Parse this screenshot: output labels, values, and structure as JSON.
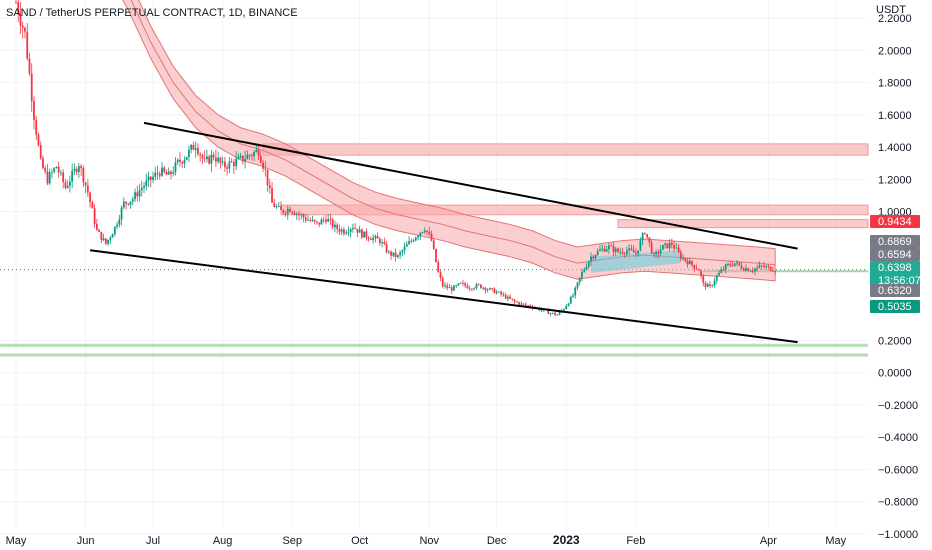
{
  "chart_data": {
    "type": "candlestick",
    "title": "SAND / TetherUS PERPETUAL CONTRACT, 1D, BINANCE",
    "currency_label": "USDT",
    "ylim": [
      -1.05,
      2.3
    ],
    "y_ticks": [
      "2.2000",
      "2.0000",
      "1.8000",
      "1.6000",
      "1.4000",
      "1.2000",
      "1.0000",
      "0.2000",
      "0.0000",
      "−0.2000",
      "−0.4000",
      "−0.6000",
      "−0.8000",
      "−1.0000"
    ],
    "y_tick_values": [
      2.2,
      2.0,
      1.8,
      1.6,
      1.4,
      1.2,
      1.0,
      0.2,
      0.0,
      -0.2,
      -0.4,
      -0.6,
      -0.8,
      -1.0
    ],
    "x_ticks": [
      {
        "label": "May",
        "day": 0
      },
      {
        "label": "Jun",
        "day": 31
      },
      {
        "label": "Jul",
        "day": 61
      },
      {
        "label": "Aug",
        "day": 92
      },
      {
        "label": "Sep",
        "day": 123
      },
      {
        "label": "Oct",
        "day": 153
      },
      {
        "label": "Nov",
        "day": 184
      },
      {
        "label": "Dec",
        "day": 214
      },
      {
        "label": "2023",
        "day": 245,
        "bold": true
      },
      {
        "label": "Feb",
        "day": 276
      },
      {
        "label": "Apr",
        "day": 335
      },
      {
        "label": "May",
        "day": 365
      }
    ],
    "price_path": [
      [
        0,
        2.3
      ],
      [
        4,
        2.1
      ],
      [
        8,
        1.6
      ],
      [
        11,
        1.3
      ],
      [
        14,
        1.2
      ],
      [
        18,
        1.28
      ],
      [
        22,
        1.15
      ],
      [
        28,
        1.3
      ],
      [
        32,
        1.12
      ],
      [
        36,
        0.88
      ],
      [
        40,
        0.8
      ],
      [
        44,
        0.9
      ],
      [
        48,
        1.05
      ],
      [
        52,
        1.08
      ],
      [
        56,
        1.15
      ],
      [
        60,
        1.2
      ],
      [
        64,
        1.25
      ],
      [
        68,
        1.22
      ],
      [
        72,
        1.3
      ],
      [
        76,
        1.35
      ],
      [
        80,
        1.42
      ],
      [
        84,
        1.3
      ],
      [
        88,
        1.35
      ],
      [
        92,
        1.28
      ],
      [
        96,
        1.3
      ],
      [
        100,
        1.32
      ],
      [
        104,
        1.35
      ],
      [
        108,
        1.38
      ],
      [
        111,
        1.25
      ],
      [
        114,
        1.05
      ],
      [
        118,
        1.0
      ],
      [
        122,
        1.02
      ],
      [
        126,
        0.98
      ],
      [
        130,
        0.95
      ],
      [
        134,
        0.92
      ],
      [
        138,
        0.96
      ],
      [
        142,
        0.9
      ],
      [
        146,
        0.88
      ],
      [
        150,
        0.91
      ],
      [
        154,
        0.86
      ],
      [
        158,
        0.84
      ],
      [
        162,
        0.82
      ],
      [
        166,
        0.74
      ],
      [
        170,
        0.72
      ],
      [
        174,
        0.79
      ],
      [
        178,
        0.85
      ],
      [
        182,
        0.9
      ],
      [
        185,
        0.82
      ],
      [
        188,
        0.62
      ],
      [
        190,
        0.54
      ],
      [
        194,
        0.52
      ],
      [
        198,
        0.55
      ],
      [
        202,
        0.53
      ],
      [
        206,
        0.54
      ],
      [
        210,
        0.52
      ],
      [
        214,
        0.5
      ],
      [
        218,
        0.47
      ],
      [
        222,
        0.44
      ],
      [
        226,
        0.42
      ],
      [
        230,
        0.41
      ],
      [
        234,
        0.39
      ],
      [
        238,
        0.37
      ],
      [
        241,
        0.36
      ],
      [
        244,
        0.4
      ],
      [
        248,
        0.48
      ],
      [
        252,
        0.62
      ],
      [
        256,
        0.72
      ],
      [
        260,
        0.76
      ],
      [
        264,
        0.78
      ],
      [
        268,
        0.75
      ],
      [
        272,
        0.76
      ],
      [
        276,
        0.74
      ],
      [
        280,
        0.88
      ],
      [
        284,
        0.72
      ],
      [
        288,
        0.78
      ],
      [
        292,
        0.8
      ],
      [
        296,
        0.72
      ],
      [
        300,
        0.68
      ],
      [
        304,
        0.64
      ],
      [
        306,
        0.55
      ],
      [
        309,
        0.53
      ],
      [
        312,
        0.6
      ],
      [
        316,
        0.66
      ],
      [
        320,
        0.68
      ],
      [
        324,
        0.65
      ],
      [
        328,
        0.64
      ],
      [
        332,
        0.66
      ],
      [
        335,
        0.65
      ],
      [
        338,
        0.64
      ]
    ],
    "band_path": [
      [
        40,
        2.6
      ],
      [
        50,
        2.35
      ],
      [
        60,
        2.05
      ],
      [
        70,
        1.8
      ],
      [
        80,
        1.62
      ],
      [
        90,
        1.5
      ],
      [
        100,
        1.42
      ],
      [
        110,
        1.38
      ],
      [
        120,
        1.32
      ],
      [
        130,
        1.24
      ],
      [
        140,
        1.16
      ],
      [
        150,
        1.08
      ],
      [
        160,
        1.02
      ],
      [
        170,
        0.98
      ],
      [
        180,
        0.95
      ],
      [
        190,
        0.92
      ],
      [
        200,
        0.88
      ],
      [
        210,
        0.85
      ],
      [
        220,
        0.82
      ],
      [
        230,
        0.78
      ],
      [
        240,
        0.72
      ],
      [
        250,
        0.68
      ],
      [
        260,
        0.7
      ],
      [
        270,
        0.72
      ],
      [
        280,
        0.73
      ],
      [
        290,
        0.72
      ],
      [
        300,
        0.71
      ],
      [
        310,
        0.7
      ],
      [
        320,
        0.69
      ],
      [
        330,
        0.68
      ],
      [
        338,
        0.67
      ]
    ],
    "band_width": 0.1,
    "trendlines": [
      {
        "from": [
          57,
          1.55
        ],
        "to": [
          348,
          0.77
        ]
      },
      {
        "from": [
          33,
          0.76
        ],
        "to": [
          348,
          0.19
        ]
      }
    ],
    "resistance_zones": [
      {
        "low": 1.35,
        "high": 1.42,
        "from_day": 110
      },
      {
        "low": 0.98,
        "high": 1.04,
        "from_day": 118
      },
      {
        "low": 0.9,
        "high": 0.95,
        "from_day": 268
      }
    ],
    "support_zones": [
      {
        "low": 0.16,
        "high": 0.18,
        "from_day": -20
      },
      {
        "low": 0.1,
        "high": 0.12,
        "from_day": -20
      }
    ],
    "support_line": {
      "value": 0.63,
      "from_day": 306
    },
    "current_price_line": 0.6398,
    "price_labels": [
      {
        "text": "0.9434",
        "value": 0.9434,
        "color": "#f23645"
      },
      {
        "text": "0.6869",
        "value": 0.6869,
        "color": "#787b86"
      },
      {
        "text": "0.6594",
        "value": 0.6594,
        "color": "#787b86"
      },
      {
        "text": "0.6398",
        "value": 0.6398,
        "color": "#22ab94",
        "sub": "13:56:07"
      },
      {
        "text": "0.6320",
        "value": 0.632,
        "color": "#787b86"
      },
      {
        "text": "0.5035",
        "value": 0.5035,
        "color": "#089981"
      }
    ],
    "colors": {
      "up": "#089981",
      "down": "#f23645",
      "band": "#f7a7a7",
      "band_line": "#e57373",
      "resistance": "#f8b4b4",
      "support": "#a5d6a7",
      "teal_fill": "#4dd0e1",
      "grid": "#f0f3fa",
      "text": "#131722"
    }
  }
}
